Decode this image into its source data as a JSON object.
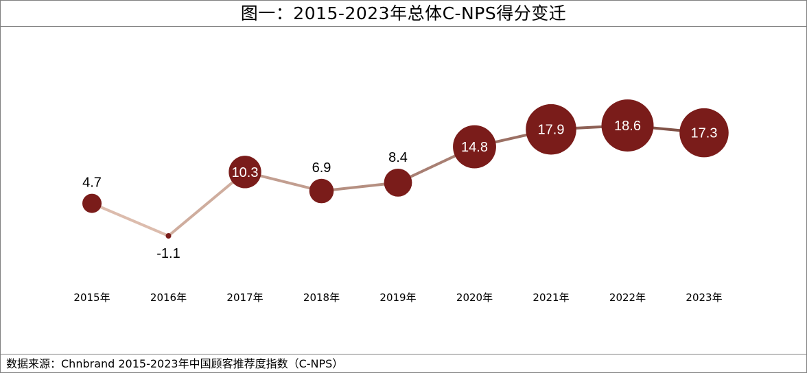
{
  "title": "图一：2015-2023年总体C-NPS得分变迁",
  "source": "数据来源：Chnbrand 2015-2023年中国顾客推荐度指数（C-NPS）",
  "chart_data": {
    "type": "line",
    "title": "图一：2015-2023年总体C-NPS得分变迁",
    "categories": [
      "2015年",
      "2016年",
      "2017年",
      "2018年",
      "2019年",
      "2020年",
      "2021年",
      "2022年",
      "2023年"
    ],
    "values": [
      4.7,
      -1.1,
      10.3,
      6.9,
      8.4,
      14.8,
      17.9,
      18.6,
      17.3
    ],
    "value_labels": [
      "4.7",
      "-1.1",
      "10.3",
      "6.9",
      "8.4",
      "14.8",
      "17.9",
      "18.6",
      "17.3"
    ],
    "ylim": [
      -1.1,
      18.6
    ],
    "grid": false,
    "legend": "none",
    "marker_size_encodes_value": true,
    "colors": {
      "marker": "#7a1c1a",
      "line_start": "#e3c4b4",
      "line_end": "#7a4a40",
      "label_outside": "#000000",
      "label_inside": "#ffffff"
    }
  }
}
